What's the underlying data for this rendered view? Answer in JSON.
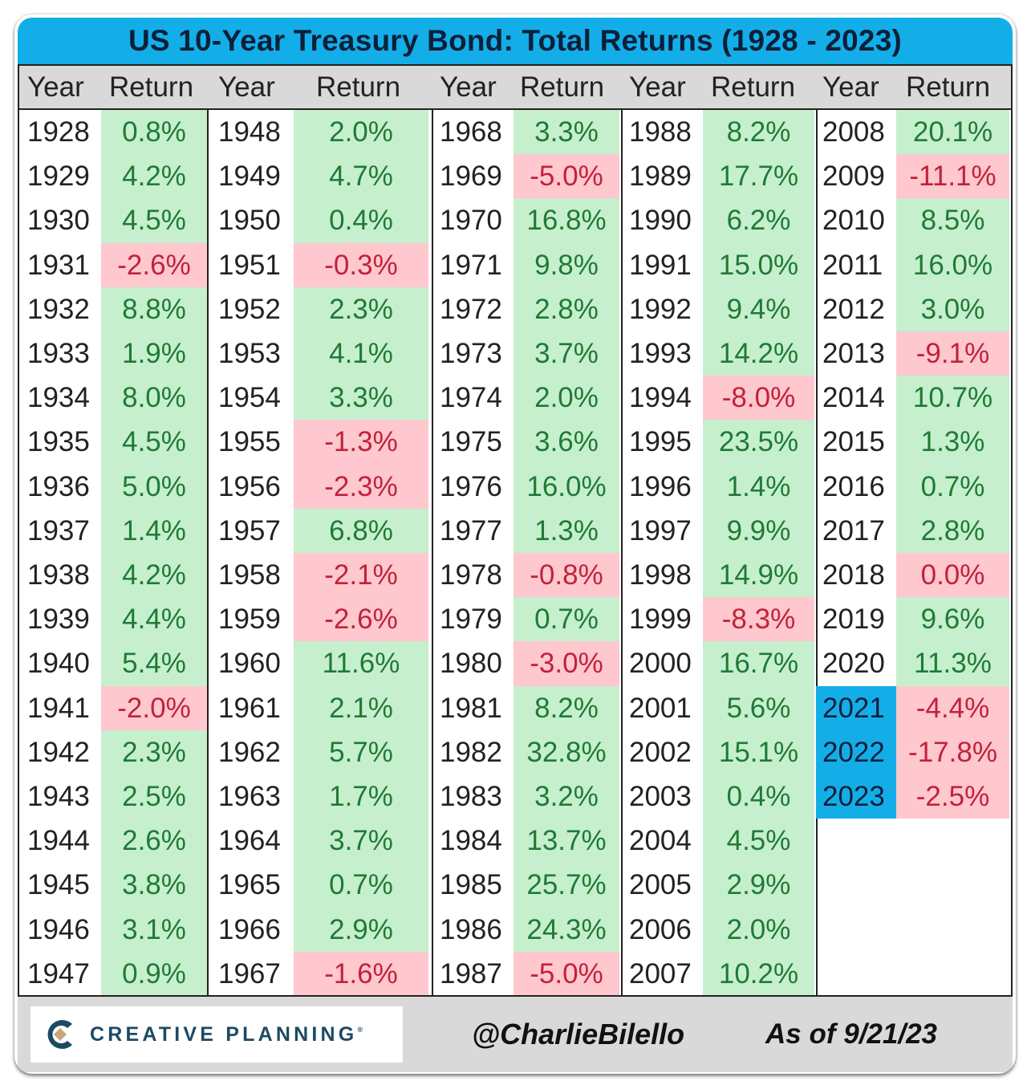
{
  "title": "US 10-Year Treasury Bond: Total Returns (1928 - 2023)",
  "headers": {
    "year": "Year",
    "return": "Return"
  },
  "colors": {
    "title_bg": "#13aee8",
    "header_bg": "#d9d9d9",
    "positive_bg": "#c6efce",
    "positive_text": "#1f7a35",
    "negative_bg": "#ffc7ce",
    "negative_text": "#c0223a",
    "highlight_year_bg": "#13aee8"
  },
  "footer": {
    "logo_text": "CREATIVE PLANNING",
    "handle": "@CharlieBilello",
    "as_of": "As of 9/21/23"
  },
  "chart_data": {
    "type": "table",
    "title": "US 10-Year Treasury Bond: Total Returns (1928 - 2023)",
    "columns": [
      "Year",
      "Return"
    ],
    "notes": "Green cells = positive return, red cells = negative/zero return; 2021-2023 year cells highlighted blue",
    "highlighted_years": [
      2021,
      2022,
      2023
    ],
    "groups": [
      {
        "rows": [
          {
            "year": "1928",
            "return": "0.8%",
            "sign": "pos"
          },
          {
            "year": "1929",
            "return": "4.2%",
            "sign": "pos"
          },
          {
            "year": "1930",
            "return": "4.5%",
            "sign": "pos"
          },
          {
            "year": "1931",
            "return": "-2.6%",
            "sign": "neg"
          },
          {
            "year": "1932",
            "return": "8.8%",
            "sign": "pos"
          },
          {
            "year": "1933",
            "return": "1.9%",
            "sign": "pos"
          },
          {
            "year": "1934",
            "return": "8.0%",
            "sign": "pos"
          },
          {
            "year": "1935",
            "return": "4.5%",
            "sign": "pos"
          },
          {
            "year": "1936",
            "return": "5.0%",
            "sign": "pos"
          },
          {
            "year": "1937",
            "return": "1.4%",
            "sign": "pos"
          },
          {
            "year": "1938",
            "return": "4.2%",
            "sign": "pos"
          },
          {
            "year": "1939",
            "return": "4.4%",
            "sign": "pos"
          },
          {
            "year": "1940",
            "return": "5.4%",
            "sign": "pos"
          },
          {
            "year": "1941",
            "return": "-2.0%",
            "sign": "neg"
          },
          {
            "year": "1942",
            "return": "2.3%",
            "sign": "pos"
          },
          {
            "year": "1943",
            "return": "2.5%",
            "sign": "pos"
          },
          {
            "year": "1944",
            "return": "2.6%",
            "sign": "pos"
          },
          {
            "year": "1945",
            "return": "3.8%",
            "sign": "pos"
          },
          {
            "year": "1946",
            "return": "3.1%",
            "sign": "pos"
          },
          {
            "year": "1947",
            "return": "0.9%",
            "sign": "pos"
          }
        ]
      },
      {
        "rows": [
          {
            "year": "1948",
            "return": "2.0%",
            "sign": "pos"
          },
          {
            "year": "1949",
            "return": "4.7%",
            "sign": "pos"
          },
          {
            "year": "1950",
            "return": "0.4%",
            "sign": "pos"
          },
          {
            "year": "1951",
            "return": "-0.3%",
            "sign": "neg"
          },
          {
            "year": "1952",
            "return": "2.3%",
            "sign": "pos"
          },
          {
            "year": "1953",
            "return": "4.1%",
            "sign": "pos"
          },
          {
            "year": "1954",
            "return": "3.3%",
            "sign": "pos"
          },
          {
            "year": "1955",
            "return": "-1.3%",
            "sign": "neg"
          },
          {
            "year": "1956",
            "return": "-2.3%",
            "sign": "neg"
          },
          {
            "year": "1957",
            "return": "6.8%",
            "sign": "pos"
          },
          {
            "year": "1958",
            "return": "-2.1%",
            "sign": "neg"
          },
          {
            "year": "1959",
            "return": "-2.6%",
            "sign": "neg"
          },
          {
            "year": "1960",
            "return": "11.6%",
            "sign": "pos"
          },
          {
            "year": "1961",
            "return": "2.1%",
            "sign": "pos"
          },
          {
            "year": "1962",
            "return": "5.7%",
            "sign": "pos"
          },
          {
            "year": "1963",
            "return": "1.7%",
            "sign": "pos"
          },
          {
            "year": "1964",
            "return": "3.7%",
            "sign": "pos"
          },
          {
            "year": "1965",
            "return": "0.7%",
            "sign": "pos"
          },
          {
            "year": "1966",
            "return": "2.9%",
            "sign": "pos"
          },
          {
            "year": "1967",
            "return": "-1.6%",
            "sign": "neg"
          }
        ]
      },
      {
        "rows": [
          {
            "year": "1968",
            "return": "3.3%",
            "sign": "pos"
          },
          {
            "year": "1969",
            "return": "-5.0%",
            "sign": "neg"
          },
          {
            "year": "1970",
            "return": "16.8%",
            "sign": "pos"
          },
          {
            "year": "1971",
            "return": "9.8%",
            "sign": "pos"
          },
          {
            "year": "1972",
            "return": "2.8%",
            "sign": "pos"
          },
          {
            "year": "1973",
            "return": "3.7%",
            "sign": "pos"
          },
          {
            "year": "1974",
            "return": "2.0%",
            "sign": "pos"
          },
          {
            "year": "1975",
            "return": "3.6%",
            "sign": "pos"
          },
          {
            "year": "1976",
            "return": "16.0%",
            "sign": "pos"
          },
          {
            "year": "1977",
            "return": "1.3%",
            "sign": "pos"
          },
          {
            "year": "1978",
            "return": "-0.8%",
            "sign": "neg"
          },
          {
            "year": "1979",
            "return": "0.7%",
            "sign": "pos"
          },
          {
            "year": "1980",
            "return": "-3.0%",
            "sign": "neg"
          },
          {
            "year": "1981",
            "return": "8.2%",
            "sign": "pos"
          },
          {
            "year": "1982",
            "return": "32.8%",
            "sign": "pos"
          },
          {
            "year": "1983",
            "return": "3.2%",
            "sign": "pos"
          },
          {
            "year": "1984",
            "return": "13.7%",
            "sign": "pos"
          },
          {
            "year": "1985",
            "return": "25.7%",
            "sign": "pos"
          },
          {
            "year": "1986",
            "return": "24.3%",
            "sign": "pos"
          },
          {
            "year": "1987",
            "return": "-5.0%",
            "sign": "neg"
          }
        ]
      },
      {
        "rows": [
          {
            "year": "1988",
            "return": "8.2%",
            "sign": "pos"
          },
          {
            "year": "1989",
            "return": "17.7%",
            "sign": "pos"
          },
          {
            "year": "1990",
            "return": "6.2%",
            "sign": "pos"
          },
          {
            "year": "1991",
            "return": "15.0%",
            "sign": "pos"
          },
          {
            "year": "1992",
            "return": "9.4%",
            "sign": "pos"
          },
          {
            "year": "1993",
            "return": "14.2%",
            "sign": "pos"
          },
          {
            "year": "1994",
            "return": "-8.0%",
            "sign": "neg"
          },
          {
            "year": "1995",
            "return": "23.5%",
            "sign": "pos"
          },
          {
            "year": "1996",
            "return": "1.4%",
            "sign": "pos"
          },
          {
            "year": "1997",
            "return": "9.9%",
            "sign": "pos"
          },
          {
            "year": "1998",
            "return": "14.9%",
            "sign": "pos"
          },
          {
            "year": "1999",
            "return": "-8.3%",
            "sign": "neg"
          },
          {
            "year": "2000",
            "return": "16.7%",
            "sign": "pos"
          },
          {
            "year": "2001",
            "return": "5.6%",
            "sign": "pos"
          },
          {
            "year": "2002",
            "return": "15.1%",
            "sign": "pos"
          },
          {
            "year": "2003",
            "return": "0.4%",
            "sign": "pos"
          },
          {
            "year": "2004",
            "return": "4.5%",
            "sign": "pos"
          },
          {
            "year": "2005",
            "return": "2.9%",
            "sign": "pos"
          },
          {
            "year": "2006",
            "return": "2.0%",
            "sign": "pos"
          },
          {
            "year": "2007",
            "return": "10.2%",
            "sign": "pos"
          }
        ]
      },
      {
        "rows": [
          {
            "year": "2008",
            "return": "20.1%",
            "sign": "pos"
          },
          {
            "year": "2009",
            "return": "-11.1%",
            "sign": "neg"
          },
          {
            "year": "2010",
            "return": "8.5%",
            "sign": "pos"
          },
          {
            "year": "2011",
            "return": "16.0%",
            "sign": "pos"
          },
          {
            "year": "2012",
            "return": "3.0%",
            "sign": "pos"
          },
          {
            "year": "2013",
            "return": "-9.1%",
            "sign": "neg"
          },
          {
            "year": "2014",
            "return": "10.7%",
            "sign": "pos"
          },
          {
            "year": "2015",
            "return": "1.3%",
            "sign": "pos"
          },
          {
            "year": "2016",
            "return": "0.7%",
            "sign": "pos"
          },
          {
            "year": "2017",
            "return": "2.8%",
            "sign": "pos"
          },
          {
            "year": "2018",
            "return": "0.0%",
            "sign": "neg"
          },
          {
            "year": "2019",
            "return": "9.6%",
            "sign": "pos"
          },
          {
            "year": "2020",
            "return": "11.3%",
            "sign": "pos"
          },
          {
            "year": "2021",
            "return": "-4.4%",
            "sign": "neg",
            "highlight": true
          },
          {
            "year": "2022",
            "return": "-17.8%",
            "sign": "neg",
            "highlight": true
          },
          {
            "year": "2023",
            "return": "-2.5%",
            "sign": "neg",
            "highlight": true
          }
        ]
      }
    ]
  }
}
